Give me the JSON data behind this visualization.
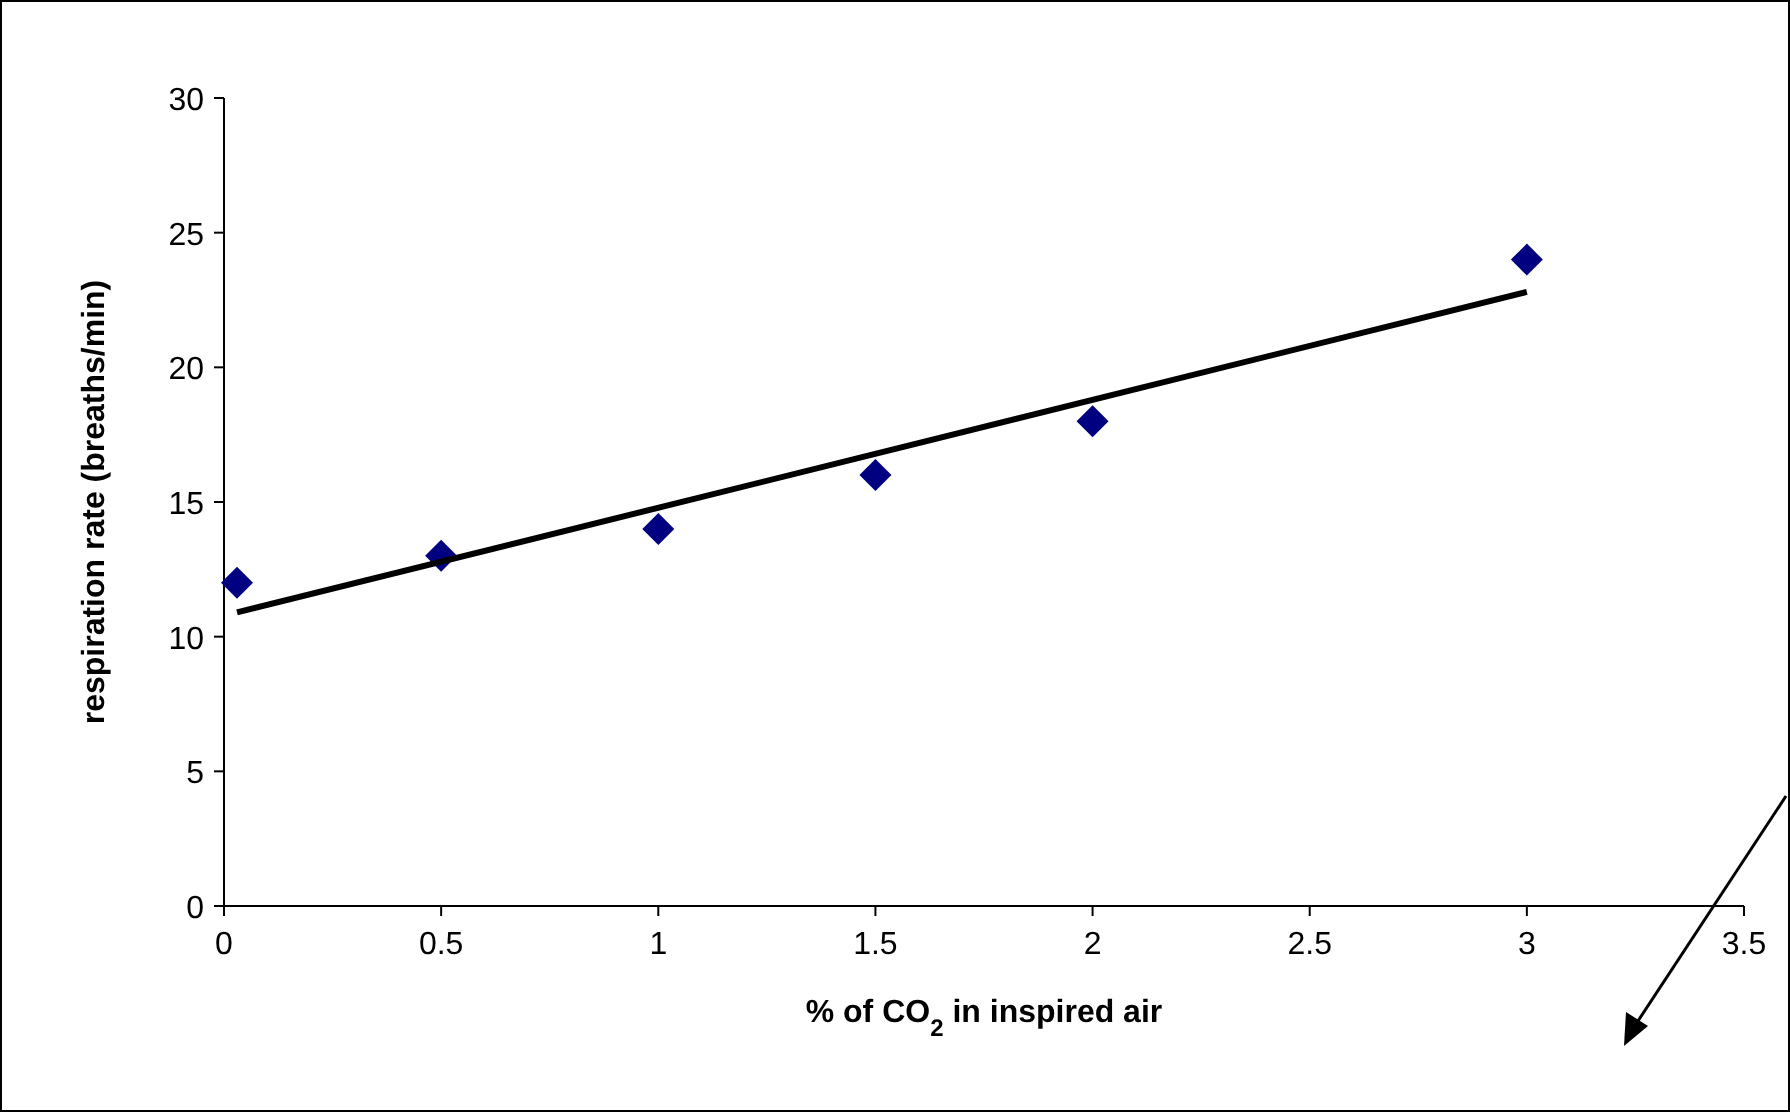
{
  "chart_data": {
    "type": "scatter",
    "xlabel": "% of CO$_{2}$ in inspired air",
    "ylabel": "respiration rate (breaths/min)",
    "xlim": [
      0,
      3.5
    ],
    "xticks": [
      0,
      0.5,
      1,
      1.5,
      2,
      2.5,
      3,
      3.5
    ],
    "ylim": [
      0,
      30
    ],
    "yticks": [
      0,
      5,
      10,
      15,
      20,
      25,
      30
    ],
    "grid": false,
    "series": [
      {
        "marker": "diamond",
        "color": "#000080",
        "x": [
          0.03,
          0.5,
          1,
          1.5,
          2,
          3
        ],
        "values": [
          12,
          13,
          14,
          16,
          18,
          24
        ]
      },
      {
        "type": "line",
        "color": "#000000",
        "x": [
          0.03,
          3
        ],
        "values": [
          10.9,
          22.8
        ]
      }
    ]
  }
}
